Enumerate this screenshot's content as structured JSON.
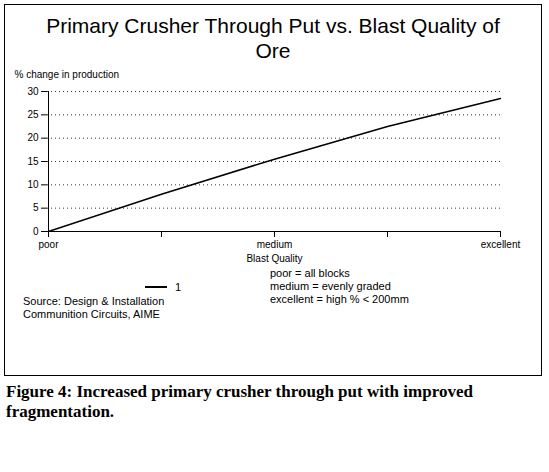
{
  "chart_data": {
    "type": "line",
    "title": "Primary Crusher Through Put vs. Blast Quality of Ore",
    "y_label": "% change in production",
    "x_label": "Blast Quality",
    "categories": [
      "poor",
      null,
      "medium",
      null,
      "excellent"
    ],
    "series": [
      {
        "name": "1",
        "color": "#000000",
        "values": [
          0,
          8,
          15.5,
          22.5,
          28.5
        ]
      }
    ],
    "ylim": [
      0,
      30
    ],
    "yticks": [
      0,
      5,
      10,
      15,
      20,
      25,
      30
    ],
    "grid": true,
    "legend": "bottom",
    "annotations": [
      "poor = all blocks",
      "medium = evenly graded",
      "excellent = high % < 200mm"
    ],
    "source": "Source: Design & Installation Communition Circuits, AIME",
    "caption": "Figure 4: Increased primary crusher through put with improved fragmentation."
  }
}
